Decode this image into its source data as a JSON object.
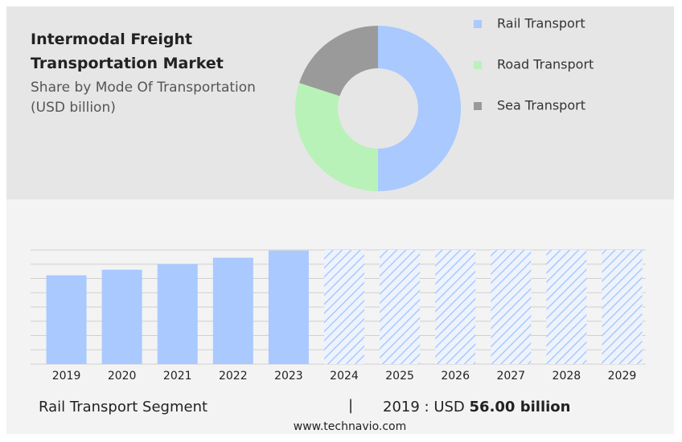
{
  "chart_data": [
    {
      "type": "pie",
      "title": "Intermodal Freight Transportation Market",
      "subtitle": "Share by Mode Of Transportation (USD billion)",
      "categories": [
        "Rail Transport",
        "Road Transport",
        "Sea Transport"
      ],
      "values": [
        50,
        30,
        20
      ],
      "colors": [
        "#a9c9ff",
        "#b8f2b8",
        "#9a9a9a"
      ],
      "legend": "right"
    },
    {
      "type": "bar",
      "categories": [
        "2019",
        "2020",
        "2021",
        "2022",
        "2023",
        "2024",
        "2025",
        "2026",
        "2027",
        "2028",
        "2029"
      ],
      "values": [
        56,
        59.5,
        63.1,
        67.1,
        71.6,
        null,
        null,
        null,
        null,
        null,
        null
      ],
      "color": "#a9c9ff",
      "ylim": [
        0,
        72
      ],
      "yticks": [
        0,
        9,
        18,
        27,
        36,
        45,
        54,
        63,
        72
      ],
      "grid": true
    }
  ],
  "footer": {
    "segment": "Rail Transport Segment",
    "separator": "|",
    "year": "2019 : USD",
    "amount": "56.00 billion",
    "source": "www.technavio.com"
  }
}
